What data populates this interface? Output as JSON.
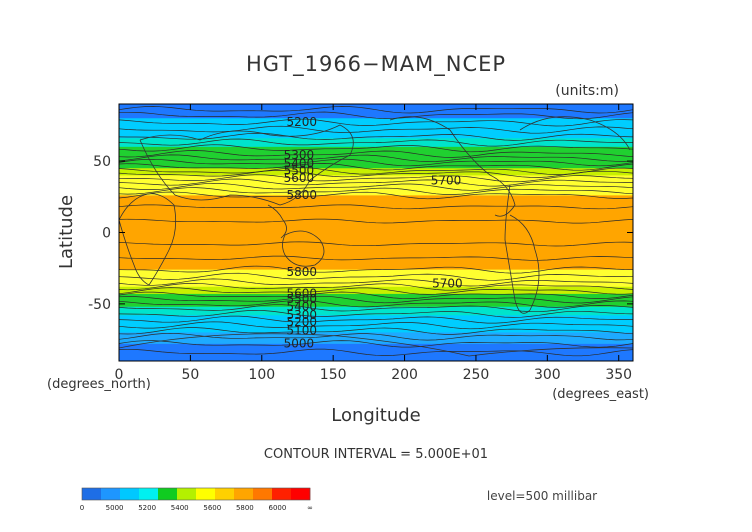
{
  "chart_data": {
    "type": "contour",
    "title": "HGT_1966−MAM_NCEP",
    "units": "(units:m)",
    "xlabel": "Longitude",
    "xunit": "(degrees_east)",
    "ylabel": "Latitude",
    "yunit": "(degrees_north)",
    "xlim": [
      0,
      360
    ],
    "ylim": [
      -90,
      90
    ],
    "x_ticks": [
      0,
      50,
      100,
      150,
      200,
      250,
      300,
      350
    ],
    "y_ticks": [
      -50,
      0,
      50
    ],
    "contour_interval_text": "CONTOUR INTERVAL = 5.000E+01",
    "level_text": "level=500 millibar",
    "contour_labels": [
      {
        "text": "5200",
        "x": 128,
        "y": 78
      },
      {
        "text": "5300",
        "x": 126,
        "y": 55
      },
      {
        "text": "5400",
        "x": 126,
        "y": 49
      },
      {
        "text": "5500",
        "x": 126,
        "y": 44
      },
      {
        "text": "5600",
        "x": 126,
        "y": 39
      },
      {
        "text": "5700",
        "x": 229,
        "y": 37
      },
      {
        "text": "5800",
        "x": 128,
        "y": 27
      },
      {
        "text": "5800",
        "x": 128,
        "y": -27
      },
      {
        "text": "5700",
        "x": 230,
        "y": -35
      },
      {
        "text": "5600",
        "x": 128,
        "y": -42
      },
      {
        "text": "5500",
        "x": 128,
        "y": -46
      },
      {
        "text": "5400",
        "x": 128,
        "y": -51
      },
      {
        "text": "5300",
        "x": 128,
        "y": -57
      },
      {
        "text": "5200",
        "x": 128,
        "y": -62
      },
      {
        "text": "5100",
        "x": 128,
        "y": -68
      },
      {
        "text": "5000",
        "x": 126,
        "y": -77
      }
    ],
    "bands": [
      {
        "lat_top": 90,
        "lat_bottom": 80,
        "color": "#1e78ff"
      },
      {
        "lat_top": 80,
        "lat_bottom": 66,
        "color": "#00cdff"
      },
      {
        "lat_top": 66,
        "lat_bottom": 60,
        "color": "#00e4cc"
      },
      {
        "lat_top": 60,
        "lat_bottom": 45,
        "color": "#20d030"
      },
      {
        "lat_top": 45,
        "lat_bottom": 40,
        "color": "#c8f000"
      },
      {
        "lat_top": 40,
        "lat_bottom": 26,
        "color": "#ffff30"
      },
      {
        "lat_top": 26,
        "lat_bottom": -26,
        "color": "#ffa500"
      },
      {
        "lat_top": -26,
        "lat_bottom": -38,
        "color": "#ffff30"
      },
      {
        "lat_top": -38,
        "lat_bottom": -43,
        "color": "#c8f000"
      },
      {
        "lat_top": -43,
        "lat_bottom": -52,
        "color": "#20d030"
      },
      {
        "lat_top": -52,
        "lat_bottom": -58,
        "color": "#00e4cc"
      },
      {
        "lat_top": -58,
        "lat_bottom": -70,
        "color": "#00cdff"
      },
      {
        "lat_top": -70,
        "lat_bottom": -78,
        "color": "#1eaaff"
      },
      {
        "lat_top": -78,
        "lat_bottom": -90,
        "color": "#1e78ff"
      }
    ],
    "contour_lats": [
      86,
      82,
      77,
      72,
      67,
      63,
      59,
      55,
      52,
      49,
      46,
      43,
      41,
      38,
      35,
      32,
      29,
      26,
      18,
      8,
      -8,
      -18,
      -26,
      -31,
      -35,
      -38,
      -41,
      -44,
      -47,
      -50,
      -53,
      -57,
      -61,
      -65,
      -69,
      -73,
      -78,
      -84
    ]
  },
  "colorbar": {
    "labels": [
      "0",
      "5000",
      "5200",
      "5400",
      "5600",
      "5800",
      "6000",
      "∞"
    ],
    "colors": [
      "#1e6ee6",
      "#1e96ff",
      "#00c8ff",
      "#00f0f0",
      "#10cc20",
      "#b4f000",
      "#ffff00",
      "#ffd000",
      "#ffa500",
      "#ff7800",
      "#ff2000",
      "#ff0000"
    ]
  }
}
